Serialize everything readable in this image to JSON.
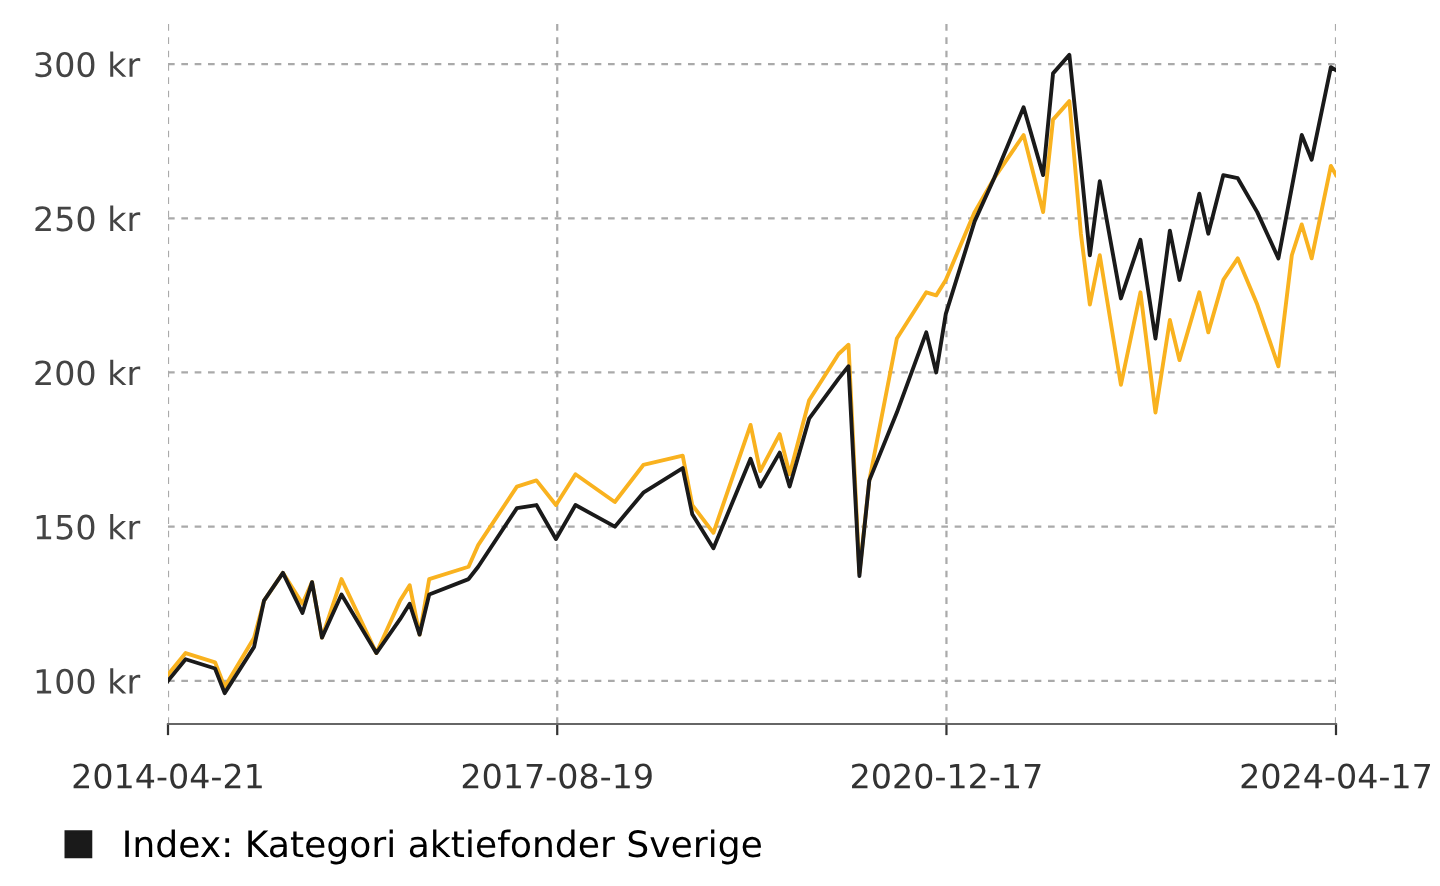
{
  "chart_data": {
    "type": "line",
    "x": [
      "2014-04-21",
      "2014-06-15",
      "2014-09-15",
      "2014-10-15",
      "2015-01-15",
      "2015-02-15",
      "2015-04-15",
      "2015-06-15",
      "2015-07-15",
      "2015-08-15",
      "2015-10-15",
      "2016-02-01",
      "2016-04-15",
      "2016-05-15",
      "2016-06-15",
      "2016-07-15",
      "2016-11-15",
      "2016-12-15",
      "2017-04-15",
      "2017-06-15",
      "2017-08-15",
      "2017-10-15",
      "2018-02-15",
      "2018-05-15",
      "2018-09-15",
      "2018-10-15",
      "2018-12-20",
      "2019-04-15",
      "2019-05-15",
      "2019-07-15",
      "2019-08-15",
      "2019-10-15",
      "2020-01-15",
      "2020-02-15",
      "2020-03-20",
      "2020-04-20",
      "2020-07-15",
      "2020-10-15",
      "2020-11-15",
      "2020-12-15",
      "2021-03-15",
      "2021-05-15",
      "2021-08-15",
      "2021-10-15",
      "2021-11-15",
      "2022-01-05",
      "2022-02-10",
      "2022-03-10",
      "2022-04-10",
      "2022-06-15",
      "2022-08-15",
      "2022-10-01",
      "2022-11-15",
      "2022-12-15",
      "2023-02-15",
      "2023-03-15",
      "2023-05-01",
      "2023-06-15",
      "2023-08-15",
      "2023-10-20",
      "2023-12-01",
      "2024-01-01",
      "2024-02-01",
      "2024-04-01",
      "2024-04-17"
    ],
    "series": [
      {
        "color": "#f9b21f",
        "values": [
          102,
          109,
          106,
          98,
          114,
          126,
          135,
          125,
          132,
          114,
          133,
          109,
          126,
          131,
          115,
          133,
          137,
          144,
          163,
          165,
          157,
          167,
          158,
          170,
          173,
          157,
          148,
          183,
          168,
          180,
          167,
          191,
          206,
          209,
          135,
          165,
          211,
          226,
          225,
          230,
          252,
          263,
          277,
          252,
          282,
          288,
          245,
          222,
          238,
          196,
          226,
          187,
          217,
          204,
          226,
          213,
          230,
          237,
          222,
          202,
          238,
          248,
          237,
          267,
          264
        ]
      },
      {
        "name": "Index: Kategori aktiefonder Sverige",
        "color": "#1a1a1a",
        "values": [
          100,
          107,
          104,
          96,
          111,
          126,
          135,
          122,
          132,
          114,
          128,
          109,
          120,
          125,
          115,
          128,
          133,
          137,
          156,
          157,
          146,
          157,
          150,
          161,
          169,
          154,
          143,
          172,
          163,
          174,
          163,
          185,
          198,
          202,
          134,
          165,
          187,
          213,
          200,
          219,
          249,
          263,
          286,
          264,
          297,
          303,
          267,
          238,
          262,
          224,
          243,
          211,
          246,
          230,
          258,
          245,
          264,
          263,
          252,
          237,
          260,
          277,
          269,
          299,
          298
        ]
      }
    ],
    "xlim": [
      "2014-04-21",
      "2024-04-17"
    ],
    "xticks": [
      {
        "value": "2014-04-21",
        "label": "2014-04-21"
      },
      {
        "value": "2017-08-19",
        "label": "2017-08-19"
      },
      {
        "value": "2020-12-17",
        "label": "2020-12-17"
      },
      {
        "value": "2024-04-17",
        "label": "2024-04-17"
      }
    ],
    "ylim": [
      86,
      313
    ],
    "yticks": [
      {
        "value": 100,
        "label": "100 kr"
      },
      {
        "value": 150,
        "label": "150 kr"
      },
      {
        "value": 200,
        "label": "200 kr"
      },
      {
        "value": 250,
        "label": "250 kr"
      },
      {
        "value": 300,
        "label": "300 kr"
      }
    ],
    "grid": true,
    "legend": "bottom",
    "marker": "none",
    "line_style": "solid"
  }
}
